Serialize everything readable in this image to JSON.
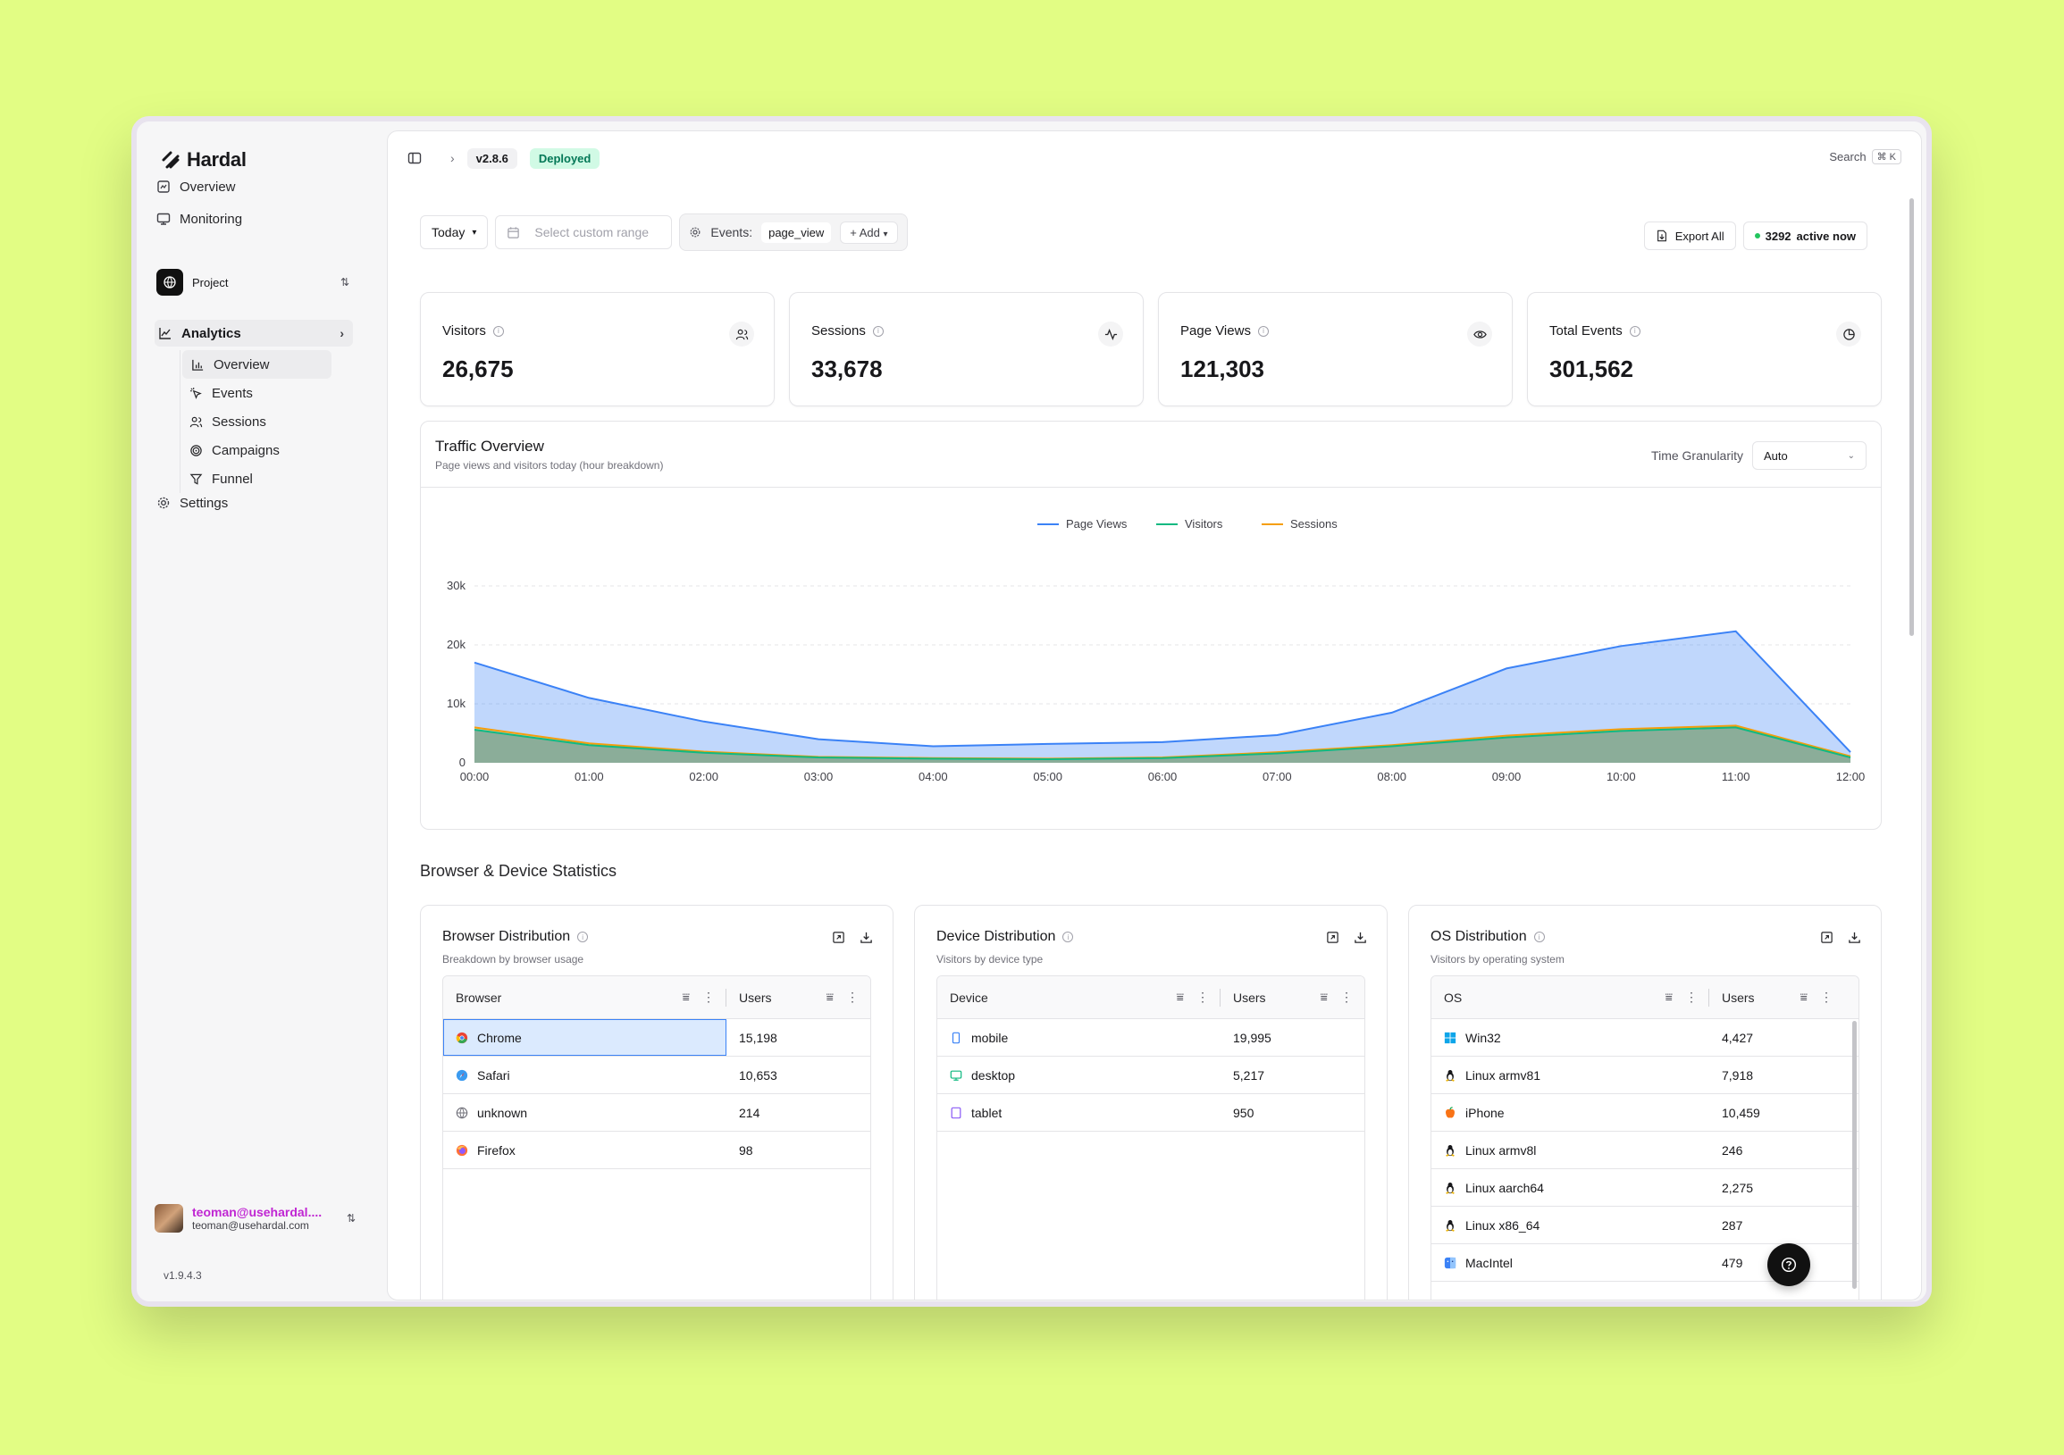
{
  "sidebar": {
    "brand": "Hardal",
    "nav": {
      "overview": "Overview",
      "monitoring": "Monitoring"
    },
    "project": "Project",
    "analytics": "Analytics",
    "sub": [
      "Overview",
      "Events",
      "Sessions",
      "Campaigns",
      "Funnel"
    ],
    "settings": "Settings",
    "user": {
      "name": "teoman@usehardal....",
      "email": "teoman@usehardal.com"
    },
    "version": "v1.9.4.3"
  },
  "topbar": {
    "version": "v2.8.6",
    "status": "Deployed",
    "search": "Search",
    "shortcut": "⌘ K"
  },
  "filters": {
    "range": "Today",
    "custom_placeholder": "Select custom range",
    "events_label": "Events:",
    "event_tag": "page_view",
    "add": "Add",
    "export": "Export All",
    "active_count": "3292",
    "active_label": "active now"
  },
  "stats": [
    {
      "label": "Visitors",
      "value": "26,675",
      "icon": "users-icon"
    },
    {
      "label": "Sessions",
      "value": "33,678",
      "icon": "activity-icon"
    },
    {
      "label": "Page Views",
      "value": "121,303",
      "icon": "eye-icon"
    },
    {
      "label": "Total Events",
      "value": "301,562",
      "icon": "pie-icon"
    }
  ],
  "traffic": {
    "title": "Traffic Overview",
    "subtitle": "Page views and visitors today (hour breakdown)",
    "granularity_label": "Time Granularity",
    "granularity_value": "Auto"
  },
  "chart_data": {
    "type": "area",
    "x": [
      "00:00",
      "01:00",
      "02:00",
      "03:00",
      "04:00",
      "05:00",
      "06:00",
      "07:00",
      "08:00",
      "09:00",
      "10:00",
      "11:00",
      "12:00"
    ],
    "series": [
      {
        "name": "Page Views",
        "color": "#3b82f6",
        "values": [
          17000,
          11000,
          7000,
          4000,
          2800,
          3200,
          3500,
          4700,
          8500,
          16000,
          19800,
          22300,
          1800
        ]
      },
      {
        "name": "Visitors",
        "color": "#10b981",
        "values": [
          5600,
          3000,
          1700,
          900,
          700,
          600,
          800,
          1600,
          2800,
          4300,
          5400,
          6000,
          900
        ]
      },
      {
        "name": "Sessions",
        "color": "#f59e0b",
        "values": [
          6000,
          3300,
          1900,
          1000,
          800,
          700,
          900,
          1800,
          3000,
          4600,
          5700,
          6300,
          1100
        ]
      }
    ],
    "yticks": [
      "0",
      "10k",
      "20k",
      "30k"
    ],
    "ylim": [
      0,
      30000
    ],
    "legend": "top-center",
    "grid": true
  },
  "section": "Browser & Device Statistics",
  "browser": {
    "title": "Browser Distribution",
    "subtitle": "Breakdown by browser usage",
    "col1": "Browser",
    "col2": "Users",
    "rows": [
      {
        "name": "Chrome",
        "users": "15,198",
        "icon": "chrome-icon"
      },
      {
        "name": "Safari",
        "users": "10,653",
        "icon": "safari-icon"
      },
      {
        "name": "unknown",
        "users": "214",
        "icon": "globe-icon"
      },
      {
        "name": "Firefox",
        "users": "98",
        "icon": "firefox-icon"
      }
    ]
  },
  "device": {
    "title": "Device Distribution",
    "subtitle": "Visitors by device type",
    "col1": "Device",
    "col2": "Users",
    "rows": [
      {
        "name": "mobile",
        "users": "19,995",
        "icon": "smartphone-icon"
      },
      {
        "name": "desktop",
        "users": "5,217",
        "icon": "monitor-icon"
      },
      {
        "name": "tablet",
        "users": "950",
        "icon": "tablet-icon"
      }
    ]
  },
  "os": {
    "title": "OS Distribution",
    "subtitle": "Visitors by operating system",
    "col1": "OS",
    "col2": "Users",
    "rows": [
      {
        "name": "Win32",
        "users": "4,427",
        "icon": "windows-icon"
      },
      {
        "name": "Linux armv81",
        "users": "7,918",
        "icon": "linux-icon"
      },
      {
        "name": "iPhone",
        "users": "10,459",
        "icon": "apple-icon"
      },
      {
        "name": "Linux armv8l",
        "users": "246",
        "icon": "linux-icon"
      },
      {
        "name": "Linux aarch64",
        "users": "2,275",
        "icon": "linux-icon"
      },
      {
        "name": "Linux x86_64",
        "users": "287",
        "icon": "linux-icon"
      },
      {
        "name": "MacIntel",
        "users": "479",
        "icon": "finder-icon"
      }
    ]
  }
}
